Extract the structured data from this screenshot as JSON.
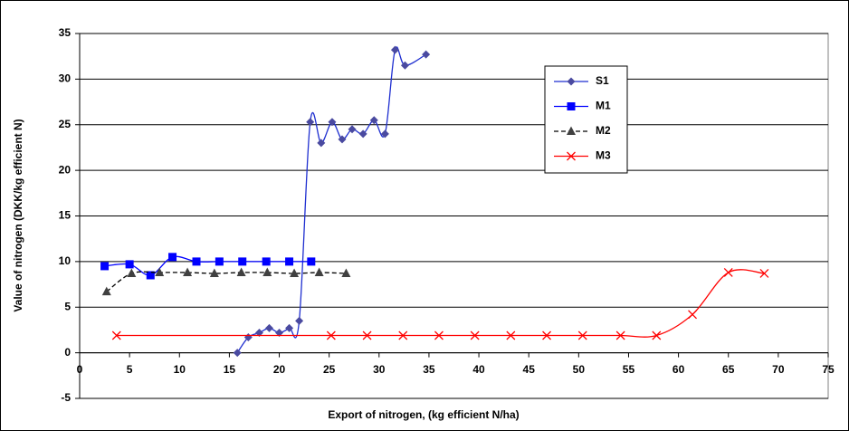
{
  "chart_data": {
    "type": "scatter",
    "x_label": "Export of nitrogen, (kg efficient N/ha)",
    "y_label": "Value of nitrogen (DKK/kg efficient N)",
    "xlim": [
      0,
      75
    ],
    "xticks": [
      0,
      5,
      10,
      15,
      20,
      25,
      30,
      35,
      40,
      45,
      50,
      55,
      60,
      65,
      70,
      75
    ],
    "ylim": [
      -5,
      35
    ],
    "yticks": [
      -5,
      0,
      5,
      10,
      15,
      20,
      25,
      30,
      35
    ],
    "grid": true,
    "smooth": true,
    "series": [
      {
        "name": "S1",
        "color": "#1f2fd0",
        "marker_color": "#4a4aa0",
        "marker": "diamond",
        "dash": false,
        "x": [
          15.8,
          16.9,
          18.0,
          19.0,
          20.0,
          21.0,
          22.0,
          23.1,
          24.2,
          25.3,
          26.3,
          27.3,
          28.4,
          29.5,
          30.6,
          31.6,
          32.6,
          34.7
        ],
        "values": [
          0,
          1.7,
          2.2,
          2.7,
          2.2,
          2.7,
          3.5,
          25.3,
          23.0,
          25.3,
          23.4,
          24.5,
          24.0,
          25.5,
          24.0,
          33.2,
          31.5,
          32.7
        ]
      },
      {
        "name": "M1",
        "color": "#0000ff",
        "marker_color": "#0000ff",
        "marker": "square",
        "dash": false,
        "x": [
          2.5,
          5.0,
          7.1,
          9.3,
          11.7,
          14.0,
          16.3,
          18.7,
          21.0,
          23.2
        ],
        "values": [
          9.5,
          9.7,
          8.5,
          10.5,
          10,
          10,
          10,
          10,
          10,
          10
        ]
      },
      {
        "name": "M2",
        "color": "#000000",
        "marker_color": "#404040",
        "marker": "triangle",
        "dash": true,
        "x": [
          2.7,
          5.2,
          8.0,
          10.8,
          13.5,
          16.2,
          18.8,
          21.5,
          24.0,
          26.7
        ],
        "values": [
          6.7,
          8.7,
          8.8,
          8.8,
          8.7,
          8.8,
          8.8,
          8.7,
          8.8,
          8.7
        ]
      },
      {
        "name": "M3",
        "color": "#ff0000",
        "marker_color": "#ff0000",
        "marker": "x",
        "dash": false,
        "x": [
          3.7,
          25.2,
          28.8,
          32.4,
          36.0,
          39.6,
          43.2,
          46.8,
          50.4,
          54.2,
          57.8,
          61.4,
          65.0,
          68.6
        ],
        "values": [
          1.9,
          1.9,
          1.9,
          1.9,
          1.9,
          1.9,
          1.9,
          1.9,
          1.9,
          1.9,
          1.9,
          4.2,
          8.8,
          8.7
        ]
      }
    ]
  }
}
